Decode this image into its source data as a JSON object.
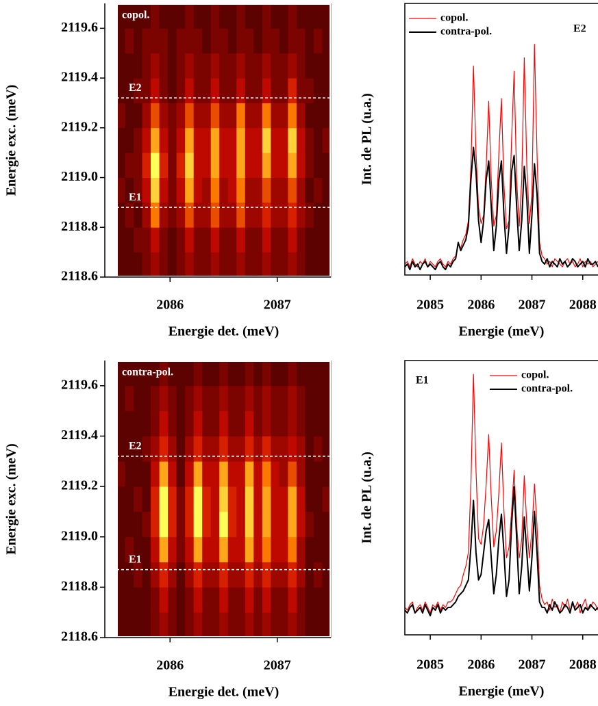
{
  "chart_data": [
    {
      "type": "heatmap",
      "label": "copol.",
      "xlabel": "Energie det. (meV)",
      "ylabel": "Energie exc. (meV)",
      "xlim": [
        2085.5,
        2087.5
      ],
      "ylim": [
        2118.6,
        2119.7
      ],
      "zlim": [
        0,
        10
      ],
      "xticks": [
        2086,
        2087
      ],
      "yticks": [
        2118.6,
        2118.8,
        {
          "value": 2119,
          "label": "2119.0"
        },
        2119.2,
        2119.4,
        2119.6
      ],
      "hlines": [
        {
          "label": "E2",
          "value": 2119.32
        },
        {
          "label": "E1",
          "value": 2118.88
        }
      ],
      "x": [
        2085.54,
        2085.62,
        2085.7,
        2085.78,
        2085.86,
        2085.94,
        2086.02,
        2086.1,
        2086.18,
        2086.26,
        2086.34,
        2086.42,
        2086.5,
        2086.58,
        2086.66,
        2086.74,
        2086.82,
        2086.9,
        2086.98,
        2087.06,
        2087.14,
        2087.22,
        2087.3,
        2087.38,
        2087.46
      ],
      "y": [
        2118.65,
        2118.75,
        2118.85,
        2118.95,
        2119.05,
        2119.15,
        2119.25,
        2119.35,
        2119.45,
        2119.55,
        2119.65
      ],
      "z": [
        [
          1,
          1,
          1,
          2,
          3,
          2,
          1,
          2,
          3,
          2,
          2,
          3,
          2,
          2,
          3,
          2,
          2,
          3,
          2,
          2,
          3,
          2,
          1,
          1,
          1
        ],
        [
          1,
          1,
          2,
          2,
          4,
          2,
          1,
          2,
          4,
          2,
          2,
          4,
          2,
          2,
          4,
          2,
          2,
          4,
          2,
          2,
          4,
          2,
          1,
          1,
          1
        ],
        [
          1,
          2,
          1,
          3,
          7,
          3,
          2,
          3,
          6,
          3,
          3,
          6,
          3,
          3,
          6,
          3,
          3,
          5,
          3,
          3,
          5,
          3,
          2,
          1,
          1
        ],
        [
          2,
          1,
          2,
          4,
          9,
          4,
          2,
          4,
          8,
          4,
          3,
          7,
          3,
          4,
          7,
          3,
          3,
          6,
          3,
          3,
          6,
          3,
          1,
          2,
          1
        ],
        [
          1,
          2,
          2,
          5,
          10,
          5,
          2,
          5,
          9,
          4,
          4,
          8,
          4,
          4,
          8,
          4,
          4,
          8,
          4,
          4,
          8,
          4,
          2,
          1,
          1
        ],
        [
          1,
          1,
          2,
          4,
          8,
          4,
          2,
          4,
          8,
          4,
          4,
          8,
          4,
          4,
          8,
          4,
          4,
          9,
          4,
          4,
          9,
          4,
          2,
          1,
          2
        ],
        [
          2,
          1,
          1,
          3,
          6,
          3,
          2,
          3,
          6,
          3,
          3,
          6,
          3,
          3,
          7,
          3,
          3,
          7,
          3,
          3,
          7,
          3,
          1,
          1,
          1
        ],
        [
          1,
          1,
          2,
          2,
          4,
          2,
          1,
          2,
          4,
          2,
          2,
          4,
          2,
          2,
          4,
          2,
          2,
          4,
          2,
          2,
          5,
          2,
          2,
          1,
          1
        ],
        [
          1,
          1,
          1,
          2,
          3,
          2,
          1,
          2,
          3,
          2,
          2,
          3,
          2,
          2,
          3,
          2,
          2,
          3,
          2,
          2,
          3,
          2,
          1,
          1,
          1
        ],
        [
          1,
          2,
          1,
          2,
          2,
          2,
          1,
          2,
          2,
          2,
          1,
          2,
          2,
          1,
          2,
          2,
          1,
          2,
          2,
          1,
          2,
          2,
          1,
          2,
          1
        ],
        [
          1,
          1,
          1,
          1,
          2,
          1,
          1,
          1,
          2,
          1,
          1,
          2,
          1,
          1,
          2,
          1,
          1,
          2,
          1,
          1,
          2,
          1,
          1,
          1,
          1
        ]
      ]
    },
    {
      "type": "line",
      "annotation": "E2",
      "legend": "upper left",
      "xlabel": "Energie (meV)",
      "ylabel": "Int. de PL (u.a.)",
      "xlim": [
        2084.5,
        2088.3
      ],
      "ylim": [
        0,
        100
      ],
      "xticks": [
        2085,
        2086,
        2087,
        2088
      ],
      "x": [
        2084.5,
        2084.55,
        2084.6,
        2084.65,
        2084.7,
        2084.75,
        2084.8,
        2084.85,
        2084.9,
        2084.95,
        2085,
        2085.05,
        2085.1,
        2085.15,
        2085.2,
        2085.25,
        2085.3,
        2085.35,
        2085.4,
        2085.45,
        2085.5,
        2085.55,
        2085.6,
        2085.65,
        2085.7,
        2085.75,
        2085.8,
        2085.85,
        2085.9,
        2085.95,
        2086,
        2086.05,
        2086.1,
        2086.15,
        2086.2,
        2086.25,
        2086.3,
        2086.35,
        2086.4,
        2086.45,
        2086.5,
        2086.55,
        2086.6,
        2086.65,
        2086.7,
        2086.75,
        2086.8,
        2086.85,
        2086.9,
        2086.95,
        2087,
        2087.05,
        2087.1,
        2087.15,
        2087.2,
        2087.25,
        2087.3,
        2087.35,
        2087.4,
        2087.45,
        2087.5,
        2087.55,
        2087.6,
        2087.65,
        2087.7,
        2087.75,
        2087.8,
        2087.85,
        2087.9,
        2087.95,
        2088,
        2088.05,
        2088.1,
        2088.15,
        2088.2,
        2088.25,
        2088.3
      ],
      "series": [
        {
          "name": "copol.",
          "color": "#ff0000",
          "values": [
            4,
            5,
            3,
            6,
            4,
            3,
            5,
            4,
            6,
            3,
            5,
            4,
            3,
            5,
            6,
            4,
            3,
            5,
            4,
            6,
            7,
            11,
            10,
            13,
            15,
            20,
            40,
            77,
            45,
            25,
            19,
            22,
            40,
            64,
            35,
            18,
            22,
            45,
            65,
            33,
            17,
            20,
            50,
            75,
            35,
            18,
            35,
            80,
            40,
            19,
            30,
            85,
            45,
            12,
            7,
            6,
            4,
            5,
            3,
            6,
            5,
            4,
            3,
            5,
            6,
            4,
            5,
            3,
            4,
            6,
            3,
            5,
            4,
            5,
            3,
            4,
            5
          ]
        },
        {
          "name": "contra-pol.",
          "color": "#000000",
          "values": [
            3,
            4,
            2,
            5,
            3,
            4,
            2,
            4,
            5,
            3,
            4,
            3,
            2,
            4,
            5,
            3,
            2,
            4,
            3,
            5,
            6,
            12,
            9,
            11,
            13,
            18,
            35,
            47,
            38,
            20,
            12,
            20,
            35,
            42,
            25,
            9,
            18,
            35,
            42,
            22,
            8,
            18,
            38,
            44,
            25,
            9,
            20,
            40,
            28,
            8,
            22,
            41,
            30,
            8,
            5,
            4,
            6,
            3,
            5,
            4,
            3,
            6,
            4,
            5,
            3,
            4,
            6,
            5,
            3,
            4,
            5,
            3,
            6,
            4,
            4,
            5,
            3
          ]
        }
      ]
    },
    {
      "type": "heatmap",
      "label": "contra-pol.",
      "xlabel": "Energie det. (meV)",
      "ylabel": "Energie exc. (meV)",
      "xlim": [
        2085.5,
        2087.5
      ],
      "ylim": [
        2118.6,
        2119.7
      ],
      "zlim": [
        0,
        10
      ],
      "xticks": [
        2086,
        2087
      ],
      "yticks": [
        2118.6,
        2118.8,
        {
          "value": 2119,
          "label": "2119.0"
        },
        2119.2,
        2119.4,
        2119.6
      ],
      "hlines": [
        {
          "label": "E2",
          "value": 2119.32
        },
        {
          "label": "E1",
          "value": 2118.87
        }
      ],
      "x": [
        2085.54,
        2085.62,
        2085.7,
        2085.78,
        2085.86,
        2085.94,
        2086.02,
        2086.1,
        2086.18,
        2086.26,
        2086.34,
        2086.42,
        2086.5,
        2086.58,
        2086.66,
        2086.74,
        2086.82,
        2086.9,
        2086.98,
        2087.06,
        2087.14,
        2087.22,
        2087.3,
        2087.38,
        2087.46
      ],
      "y": [
        2118.65,
        2118.75,
        2118.85,
        2118.95,
        2119.05,
        2119.15,
        2119.25,
        2119.35,
        2119.45,
        2119.55,
        2119.65
      ],
      "z": [
        [
          1,
          1,
          1,
          1,
          2,
          3,
          2,
          1,
          2,
          3,
          2,
          2,
          3,
          2,
          2,
          3,
          2,
          3,
          2,
          2,
          3,
          2,
          1,
          1,
          1
        ],
        [
          1,
          1,
          1,
          1,
          2,
          4,
          2,
          1,
          2,
          4,
          2,
          2,
          4,
          2,
          2,
          4,
          2,
          4,
          2,
          2,
          4,
          2,
          1,
          1,
          1
        ],
        [
          1,
          1,
          2,
          1,
          3,
          5,
          3,
          1,
          3,
          5,
          3,
          3,
          5,
          3,
          3,
          5,
          3,
          5,
          3,
          3,
          5,
          3,
          1,
          2,
          1
        ],
        [
          1,
          2,
          1,
          1,
          4,
          8,
          4,
          2,
          4,
          8,
          4,
          4,
          8,
          4,
          4,
          8,
          4,
          7,
          4,
          4,
          7,
          3,
          1,
          1,
          1
        ],
        [
          1,
          1,
          1,
          2,
          5,
          10,
          5,
          2,
          5,
          10,
          5,
          4,
          10,
          5,
          4,
          9,
          4,
          8,
          4,
          4,
          8,
          4,
          2,
          1,
          1
        ],
        [
          1,
          1,
          2,
          1,
          5,
          10,
          5,
          2,
          5,
          10,
          5,
          4,
          9,
          5,
          4,
          9,
          4,
          8,
          4,
          4,
          8,
          4,
          1,
          1,
          2
        ],
        [
          2,
          1,
          1,
          1,
          4,
          8,
          4,
          1,
          4,
          8,
          4,
          4,
          8,
          4,
          4,
          8,
          4,
          7,
          4,
          3,
          6,
          3,
          1,
          1,
          1
        ],
        [
          1,
          1,
          1,
          2,
          3,
          5,
          3,
          1,
          3,
          5,
          3,
          3,
          5,
          3,
          3,
          5,
          3,
          5,
          3,
          3,
          4,
          3,
          1,
          2,
          1
        ],
        [
          1,
          1,
          1,
          1,
          2,
          4,
          2,
          1,
          2,
          4,
          2,
          2,
          4,
          2,
          2,
          4,
          2,
          3,
          2,
          2,
          3,
          2,
          1,
          1,
          1
        ],
        [
          1,
          2,
          1,
          1,
          2,
          3,
          2,
          1,
          2,
          3,
          2,
          2,
          3,
          2,
          2,
          3,
          2,
          3,
          2,
          2,
          3,
          2,
          1,
          1,
          1
        ],
        [
          1,
          1,
          1,
          1,
          1,
          2,
          1,
          1,
          1,
          2,
          1,
          1,
          2,
          1,
          1,
          2,
          1,
          2,
          1,
          1,
          2,
          1,
          1,
          1,
          1
        ]
      ]
    },
    {
      "type": "line",
      "annotation": "E1",
      "legend": "upper right",
      "xlabel": "Energie (meV)",
      "ylabel": "Int. de PL (u.a.)",
      "xlim": [
        2084.5,
        2088.3
      ],
      "ylim": [
        0,
        100
      ],
      "xticks": [
        2085,
        2086,
        2087,
        2088
      ],
      "x": [
        2084.5,
        2084.55,
        2084.6,
        2084.65,
        2084.7,
        2084.75,
        2084.8,
        2084.85,
        2084.9,
        2084.95,
        2085,
        2085.05,
        2085.1,
        2085.15,
        2085.2,
        2085.25,
        2085.3,
        2085.35,
        2085.4,
        2085.45,
        2085.5,
        2085.55,
        2085.6,
        2085.65,
        2085.7,
        2085.75,
        2085.8,
        2085.85,
        2085.9,
        2085.95,
        2086,
        2086.05,
        2086.1,
        2086.15,
        2086.2,
        2086.25,
        2086.3,
        2086.35,
        2086.4,
        2086.45,
        2086.5,
        2086.55,
        2086.6,
        2086.65,
        2086.7,
        2086.75,
        2086.8,
        2086.85,
        2086.9,
        2086.95,
        2087,
        2087.05,
        2087.1,
        2087.15,
        2087.2,
        2087.25,
        2087.3,
        2087.35,
        2087.4,
        2087.45,
        2087.5,
        2087.55,
        2087.6,
        2087.65,
        2087.7,
        2087.75,
        2087.8,
        2087.85,
        2087.9,
        2087.95,
        2088,
        2088.05,
        2088.1,
        2088.15,
        2088.2,
        2088.25,
        2088.3
      ],
      "series": [
        {
          "name": "copol.",
          "color": "#ff0000",
          "values": [
            10,
            9,
            11,
            12,
            8,
            10,
            11,
            9,
            12,
            10,
            8,
            11,
            10,
            12,
            9,
            11,
            10,
            12,
            12,
            13,
            15,
            17,
            18,
            22,
            25,
            30,
            55,
            95,
            60,
            35,
            33,
            40,
            55,
            73,
            50,
            32,
            38,
            52,
            70,
            45,
            28,
            32,
            45,
            60,
            40,
            28,
            35,
            58,
            40,
            28,
            38,
            55,
            40,
            18,
            13,
            11,
            12,
            9,
            13,
            10,
            11,
            8,
            12,
            10,
            13,
            9,
            11,
            10,
            12,
            8,
            11,
            13,
            9,
            10,
            12,
            11,
            9
          ]
        },
        {
          "name": "contra-pol.",
          "color": "#000000",
          "values": [
            9,
            8,
            10,
            11,
            8,
            9,
            10,
            8,
            11,
            9,
            7,
            10,
            9,
            11,
            8,
            10,
            9,
            10,
            10,
            11,
            12,
            14,
            15,
            16,
            18,
            20,
            32,
            49,
            30,
            20,
            22,
            30,
            38,
            42,
            28,
            15,
            22,
            35,
            44,
            30,
            14,
            20,
            40,
            54,
            35,
            15,
            25,
            43,
            30,
            16,
            28,
            45,
            30,
            12,
            10,
            10,
            8,
            11,
            9,
            12,
            10,
            8,
            9,
            11,
            10,
            8,
            12,
            9,
            10,
            11,
            8,
            10,
            9,
            11,
            10,
            9,
            10
          ]
        }
      ]
    }
  ]
}
